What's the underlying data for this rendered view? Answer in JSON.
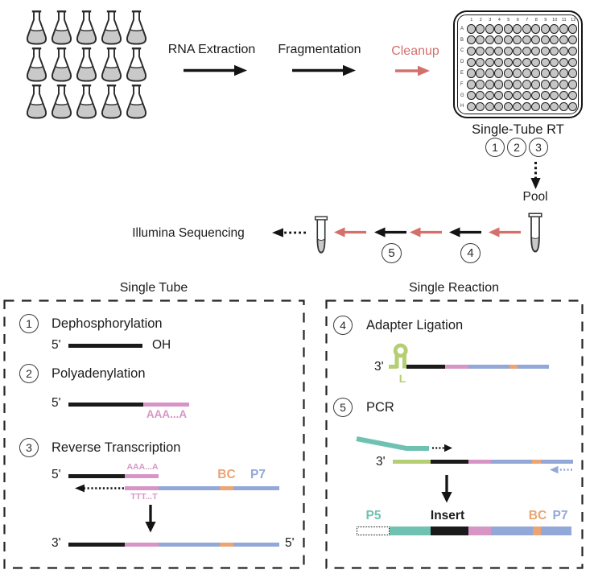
{
  "figure": {
    "top": {
      "flasks": {
        "count": 15,
        "columns": 5
      },
      "flow_steps": [
        {
          "label": "RNA Extraction",
          "emphasis": "normal"
        },
        {
          "label": "Fragmentation",
          "emphasis": "normal"
        },
        {
          "label": "Cleanup",
          "emphasis": "highlight"
        }
      ],
      "plate": {
        "column_labels": [
          "1",
          "2",
          "3",
          "4",
          "5",
          "6",
          "7",
          "8",
          "9",
          "10",
          "11",
          "12"
        ],
        "row_labels": [
          "A",
          "B",
          "C",
          "D",
          "E",
          "F",
          "G",
          "H"
        ],
        "caption": "Single-Tube RT",
        "step_badges": [
          "1",
          "2",
          "3"
        ]
      },
      "pool_label": "Pool",
      "sequencing_label": "Illumina Sequencing",
      "pipeline_badges": [
        "4",
        "5"
      ]
    },
    "left_panel": {
      "title": "Single Tube",
      "steps": [
        {
          "num": "1",
          "name": "Dephosphorylation"
        },
        {
          "num": "2",
          "name": "Polyadenylation"
        },
        {
          "num": "3",
          "name": "Reverse Transcription"
        }
      ],
      "labels": {
        "five_prime": "5'",
        "three_prime": "3'",
        "oh": "OH",
        "poly_a_big": "AAA...A",
        "poly_a_small": "AAA...A",
        "poly_t": "TTT...T",
        "bc": "BC",
        "p7": "P7"
      }
    },
    "right_panel": {
      "title": "Single Reaction",
      "steps": [
        {
          "num": "4",
          "name": "Adapter Ligation"
        },
        {
          "num": "5",
          "name": "PCR"
        }
      ],
      "labels": {
        "three_prime_adapter": "3'",
        "three_prime_pcr": "3'",
        "loop": "L",
        "p5": "P5",
        "insert": "Insert",
        "bc": "BC",
        "p7": "P7"
      }
    },
    "colors": {
      "highlight_red": "#D4706C",
      "poly_a_pink": "#D795C6",
      "p7_blue": "#92A8D8",
      "barcode_orange": "#EBA473",
      "adapter_green": "#B5CE73",
      "p5_teal": "#6FC2B2",
      "strand_black": "#1A1A1A",
      "liquid_gray": "#C9C9C9"
    }
  }
}
